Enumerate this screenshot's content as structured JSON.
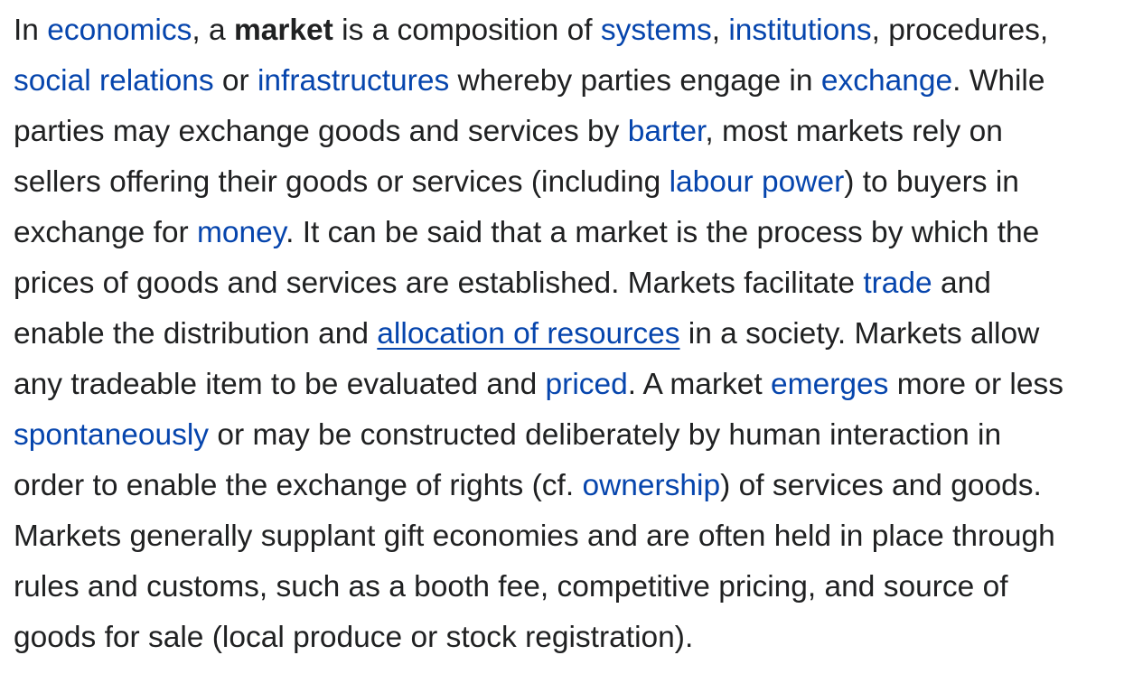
{
  "article": {
    "lines": [
      [
        {
          "t": "In "
        },
        {
          "t": "economics",
          "link": true,
          "name": "link-economics"
        },
        {
          "t": ", a "
        },
        {
          "t": "market",
          "bold": true,
          "name": "bold-term-market"
        },
        {
          "t": " is a composition of "
        },
        {
          "t": "systems",
          "link": true,
          "name": "link-systems"
        },
        {
          "t": ", "
        },
        {
          "t": "institutions",
          "link": true,
          "name": "link-institutions"
        },
        {
          "t": ", procedures,"
        }
      ],
      [
        {
          "t": "social relations",
          "link": true,
          "name": "link-social-relations"
        },
        {
          "t": " or "
        },
        {
          "t": "infrastructures",
          "link": true,
          "name": "link-infrastructures"
        },
        {
          "t": " whereby parties engage in "
        },
        {
          "t": "exchange",
          "link": true,
          "name": "link-exchange"
        },
        {
          "t": ". While"
        }
      ],
      [
        {
          "t": "parties may exchange goods and services by "
        },
        {
          "t": "barter",
          "link": true,
          "name": "link-barter"
        },
        {
          "t": ", most markets rely on"
        }
      ],
      [
        {
          "t": "sellers offering their goods or services (including "
        },
        {
          "t": "labour power",
          "link": true,
          "name": "link-labour-power"
        },
        {
          "t": ") to buyers in"
        }
      ],
      [
        {
          "t": "exchange for "
        },
        {
          "t": "money",
          "link": true,
          "name": "link-money"
        },
        {
          "t": ". It can be said that a market is the process by which the"
        }
      ],
      [
        {
          "t": "prices of goods and services are established. Markets facilitate "
        },
        {
          "t": "trade",
          "link": true,
          "name": "link-trade"
        },
        {
          "t": " and"
        }
      ],
      [
        {
          "t": "enable the distribution and "
        },
        {
          "t": "allocation of resources",
          "link": true,
          "underline": true,
          "name": "link-allocation-of-resources"
        },
        {
          "t": " in a society. Markets allow"
        }
      ],
      [
        {
          "t": "any tradeable item to be evaluated and "
        },
        {
          "t": "priced",
          "link": true,
          "name": "link-priced"
        },
        {
          "t": ". A market "
        },
        {
          "t": "emerges",
          "link": true,
          "name": "link-emerges"
        },
        {
          "t": " more or less"
        }
      ],
      [
        {
          "t": "spontaneously",
          "link": true,
          "name": "link-spontaneously"
        },
        {
          "t": " or may be constructed deliberately by human interaction in"
        }
      ],
      [
        {
          "t": "order to enable the exchange of rights (cf. "
        },
        {
          "t": "ownership",
          "link": true,
          "name": "link-ownership"
        },
        {
          "t": ") of services and goods."
        }
      ],
      [
        {
          "t": "Markets generally supplant gift economies and are often held in place through"
        }
      ],
      [
        {
          "t": "rules and customs, such as a booth fee, competitive pricing, and source of"
        }
      ],
      [
        {
          "t": "goods for sale (local produce or stock registration)."
        }
      ]
    ]
  },
  "colors": {
    "text": "#202122",
    "link": "#0645ad",
    "background": "#ffffff"
  }
}
